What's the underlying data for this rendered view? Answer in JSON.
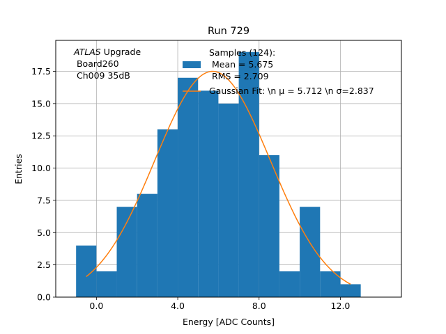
{
  "chart_data": {
    "type": "bar",
    "title": "Run 729",
    "xlabel": "Energy [ADC Counts]",
    "ylabel": "Entries",
    "xlim": [
      -2,
      15
    ],
    "ylim": [
      0,
      19.9
    ],
    "grid": true,
    "bin_edges": [
      -1,
      0,
      1,
      2,
      3,
      4,
      5,
      6,
      7,
      8,
      9,
      10,
      11,
      12,
      13
    ],
    "values": [
      4,
      2,
      7,
      8,
      13,
      17,
      16,
      15,
      19,
      11,
      2,
      7,
      2,
      1
    ],
    "xticks": [
      0,
      4,
      8,
      12
    ],
    "xtick_labels": [
      "0.0",
      "4.0",
      "8.0",
      "12.0"
    ],
    "yticks": [
      0,
      2.5,
      5,
      7.5,
      10,
      12.5,
      15,
      17.5
    ],
    "ytick_labels": [
      "0.0",
      "2.5",
      "5.0",
      "7.5",
      "10.0",
      "12.5",
      "15.0",
      "17.5"
    ],
    "fit": {
      "type": "gaussian",
      "amplitude": 17.5,
      "mu": 5.712,
      "sigma": 2.837,
      "x_range": [
        -0.5,
        12.5
      ]
    },
    "colors": {
      "bars": "#1f77b4",
      "fit": "#ff7f0e",
      "grid": "#b0b0b0"
    },
    "annotation": {
      "italic_part": "ATLAS",
      "first_line_rest": " Upgrade",
      "line2": " Board260",
      "line3": " Ch009 35dB"
    },
    "legend": {
      "placement": "top-center",
      "histogram": [
        "Samples (124):",
        " Mean = 5.675",
        " RMS = 2.709"
      ],
      "fit": "Gaussian Fit: \\n μ = 5.712 \\n σ=2.837"
    }
  }
}
